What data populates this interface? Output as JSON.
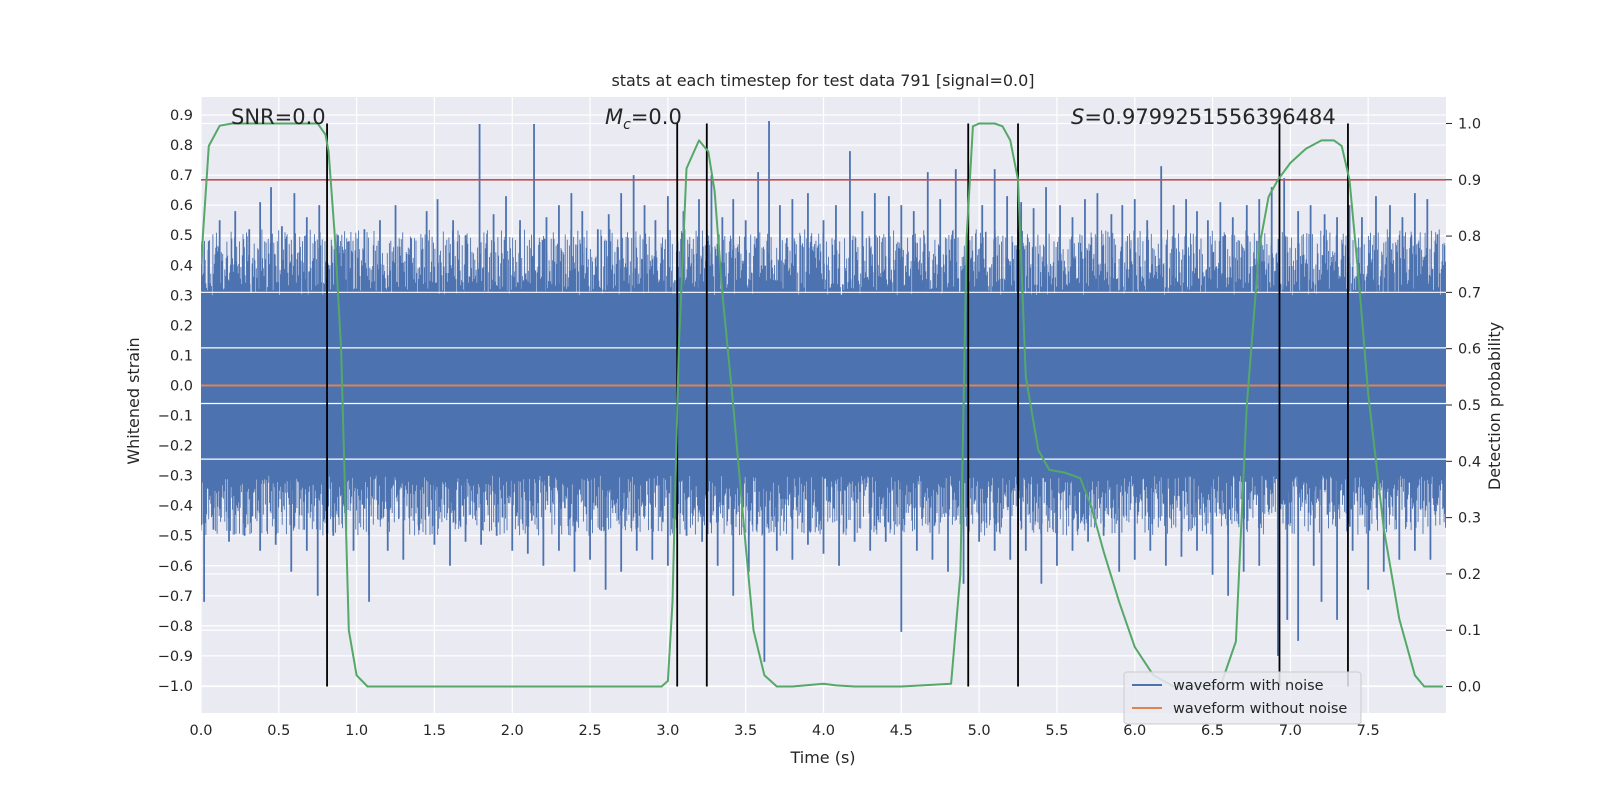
{
  "chart_data": {
    "type": "line",
    "title": "stats at each timestep for test data 791 [signal=0.0]",
    "xlabel": "Time (s)",
    "ylabel": "Whitened strain",
    "ylabel_right": "Detection probability",
    "xlim": [
      0.0,
      8.0
    ],
    "ylim": [
      -1.09,
      0.96
    ],
    "ylim_right": [
      -0.047,
      1.047
    ],
    "x_ticks": [
      "0.0",
      "0.5",
      "1.0",
      "1.5",
      "2.0",
      "2.5",
      "3.0",
      "3.5",
      "4.0",
      "4.5",
      "5.0",
      "5.5",
      "6.0",
      "6.5",
      "7.0",
      "7.5"
    ],
    "y_ticks": [
      "0.9",
      "0.8",
      "0.7",
      "0.6",
      "0.5",
      "0.4",
      "0.3",
      "0.2",
      "0.1",
      "0.0",
      "−0.1",
      "−0.2",
      "−0.3",
      "−0.4",
      "−0.5",
      "−0.6",
      "−0.7",
      "−0.8",
      "−0.9",
      "−1.0"
    ],
    "y_ticks_right": [
      "1.0",
      "0.9",
      "0.8",
      "0.7",
      "0.6",
      "0.5",
      "0.4",
      "0.3",
      "0.2",
      "0.1",
      "0.0"
    ],
    "grid": true,
    "legend_placement": "lower right",
    "annotations": {
      "snr": "SNR=0.0",
      "mc_symbol": "M",
      "mc_sub": "c",
      "mc_value": "=0.0",
      "s_symbol": "S",
      "s_value": "=0.9799251556396484"
    },
    "series": [
      {
        "name": "waveform with noise",
        "color": "#4c72b0",
        "description_band": [
          -0.3,
          0.3
        ],
        "upper_spikes": [
          [
            0.05,
            0.48
          ],
          [
            0.12,
            0.55
          ],
          [
            0.22,
            0.58
          ],
          [
            0.31,
            0.52
          ],
          [
            0.38,
            0.61
          ],
          [
            0.45,
            0.66
          ],
          [
            0.52,
            0.53
          ],
          [
            0.6,
            0.64
          ],
          [
            0.68,
            0.56
          ],
          [
            0.76,
            0.6
          ],
          [
            0.88,
            0.5
          ],
          [
            0.95,
            0.48
          ],
          [
            1.05,
            0.52
          ],
          [
            1.15,
            0.55
          ],
          [
            1.25,
            0.6
          ],
          [
            1.35,
            0.49
          ],
          [
            1.45,
            0.58
          ],
          [
            1.52,
            0.62
          ],
          [
            1.62,
            0.55
          ],
          [
            1.7,
            0.5
          ],
          [
            1.79,
            0.87
          ],
          [
            1.88,
            0.57
          ],
          [
            1.96,
            0.63
          ],
          [
            2.05,
            0.55
          ],
          [
            2.14,
            0.87
          ],
          [
            2.22,
            0.56
          ],
          [
            2.3,
            0.6
          ],
          [
            2.38,
            0.64
          ],
          [
            2.45,
            0.58
          ],
          [
            2.55,
            0.52
          ],
          [
            2.62,
            0.57
          ],
          [
            2.7,
            0.64
          ],
          [
            2.78,
            0.7
          ],
          [
            2.85,
            0.6
          ],
          [
            2.92,
            0.55
          ],
          [
            3.0,
            0.63
          ],
          [
            3.1,
            0.58
          ],
          [
            3.2,
            0.62
          ],
          [
            3.28,
            0.7
          ],
          [
            3.35,
            0.56
          ],
          [
            3.42,
            0.62
          ],
          [
            3.5,
            0.55
          ],
          [
            3.58,
            0.71
          ],
          [
            3.65,
            0.88
          ],
          [
            3.72,
            0.6
          ],
          [
            3.8,
            0.62
          ],
          [
            3.9,
            0.64
          ],
          [
            4.0,
            0.55
          ],
          [
            4.08,
            0.6
          ],
          [
            4.17,
            0.78
          ],
          [
            4.25,
            0.58
          ],
          [
            4.33,
            0.64
          ],
          [
            4.42,
            0.63
          ],
          [
            4.5,
            0.6
          ],
          [
            4.58,
            0.58
          ],
          [
            4.67,
            0.71
          ],
          [
            4.75,
            0.62
          ],
          [
            4.85,
            0.72
          ],
          [
            4.93,
            0.58
          ],
          [
            5.02,
            0.6
          ],
          [
            5.1,
            0.72
          ],
          [
            5.18,
            0.63
          ],
          [
            5.27,
            0.61
          ],
          [
            5.35,
            0.59
          ],
          [
            5.43,
            0.66
          ],
          [
            5.52,
            0.6
          ],
          [
            5.6,
            0.56
          ],
          [
            5.68,
            0.62
          ],
          [
            5.76,
            0.64
          ],
          [
            5.85,
            0.57
          ],
          [
            5.92,
            0.6
          ],
          [
            6.0,
            0.62
          ],
          [
            6.08,
            0.55
          ],
          [
            6.17,
            0.73
          ],
          [
            6.25,
            0.6
          ],
          [
            6.33,
            0.62
          ],
          [
            6.4,
            0.58
          ],
          [
            6.47,
            0.55
          ],
          [
            6.55,
            0.61
          ],
          [
            6.63,
            0.56
          ],
          [
            6.72,
            0.6
          ],
          [
            6.8,
            0.62
          ],
          [
            6.88,
            0.66
          ],
          [
            6.96,
            0.69
          ],
          [
            7.05,
            0.58
          ],
          [
            7.13,
            0.6
          ],
          [
            7.22,
            0.57
          ],
          [
            7.3,
            0.56
          ],
          [
            7.38,
            0.6
          ],
          [
            7.46,
            0.56
          ],
          [
            7.55,
            0.63
          ],
          [
            7.64,
            0.6
          ],
          [
            7.72,
            0.56
          ],
          [
            7.8,
            0.64
          ],
          [
            7.88,
            0.62
          ]
        ],
        "lower_spikes": [
          [
            0.02,
            -0.72
          ],
          [
            0.08,
            -0.48
          ],
          [
            0.18,
            -0.52
          ],
          [
            0.28,
            -0.5
          ],
          [
            0.38,
            -0.55
          ],
          [
            0.48,
            -0.53
          ],
          [
            0.58,
            -0.62
          ],
          [
            0.68,
            -0.55
          ],
          [
            0.75,
            -0.7
          ],
          [
            0.85,
            -0.5
          ],
          [
            0.98,
            -0.55
          ],
          [
            1.08,
            -0.72
          ],
          [
            1.2,
            -0.55
          ],
          [
            1.3,
            -0.58
          ],
          [
            1.4,
            -0.48
          ],
          [
            1.5,
            -0.53
          ],
          [
            1.6,
            -0.6
          ],
          [
            1.7,
            -0.52
          ],
          [
            1.8,
            -0.53
          ],
          [
            1.9,
            -0.5
          ],
          [
            2.0,
            -0.55
          ],
          [
            2.1,
            -0.56
          ],
          [
            2.2,
            -0.6
          ],
          [
            2.3,
            -0.55
          ],
          [
            2.4,
            -0.62
          ],
          [
            2.5,
            -0.58
          ],
          [
            2.6,
            -0.68
          ],
          [
            2.7,
            -0.62
          ],
          [
            2.8,
            -0.55
          ],
          [
            2.9,
            -0.58
          ],
          [
            3.0,
            -0.6
          ],
          [
            3.12,
            -0.5
          ],
          [
            3.22,
            -0.52
          ],
          [
            3.32,
            -0.6
          ],
          [
            3.42,
            -0.7
          ],
          [
            3.52,
            -0.62
          ],
          [
            3.62,
            -0.92
          ],
          [
            3.7,
            -0.55
          ],
          [
            3.8,
            -0.58
          ],
          [
            3.9,
            -0.53
          ],
          [
            4.0,
            -0.56
          ],
          [
            4.1,
            -0.6
          ],
          [
            4.2,
            -0.52
          ],
          [
            4.3,
            -0.55
          ],
          [
            4.4,
            -0.52
          ],
          [
            4.5,
            -0.82
          ],
          [
            4.6,
            -0.55
          ],
          [
            4.7,
            -0.58
          ],
          [
            4.8,
            -0.62
          ],
          [
            4.9,
            -0.66
          ],
          [
            5.0,
            -0.52
          ],
          [
            5.1,
            -0.55
          ],
          [
            5.2,
            -0.58
          ],
          [
            5.3,
            -0.55
          ],
          [
            5.4,
            -0.66
          ],
          [
            5.5,
            -0.6
          ],
          [
            5.6,
            -0.55
          ],
          [
            5.7,
            -0.52
          ],
          [
            5.8,
            -0.5
          ],
          [
            5.9,
            -0.62
          ],
          [
            6.0,
            -0.58
          ],
          [
            6.1,
            -0.55
          ],
          [
            6.2,
            -0.6
          ],
          [
            6.3,
            -0.57
          ],
          [
            6.4,
            -0.55
          ],
          [
            6.5,
            -0.63
          ],
          [
            6.6,
            -0.7
          ],
          [
            6.7,
            -0.62
          ],
          [
            6.8,
            -0.6
          ],
          [
            6.92,
            -0.9
          ],
          [
            6.98,
            -0.78
          ],
          [
            7.05,
            -0.85
          ],
          [
            7.15,
            -0.6
          ],
          [
            7.2,
            -0.72
          ],
          [
            7.3,
            -0.78
          ],
          [
            7.4,
            -0.55
          ],
          [
            7.5,
            -0.68
          ],
          [
            7.6,
            -0.62
          ],
          [
            7.7,
            -0.58
          ],
          [
            7.8,
            -0.55
          ],
          [
            7.9,
            -0.58
          ]
        ]
      },
      {
        "name": "waveform without noise",
        "color": "#dd8452",
        "x": [
          0.0,
          8.0
        ],
        "y": [
          0.0,
          0.0
        ]
      },
      {
        "name": "detection probability",
        "axis": "right",
        "color": "#55a868",
        "x": [
          0.0,
          0.05,
          0.12,
          0.2,
          0.3,
          0.5,
          0.75,
          0.8,
          0.82,
          0.86,
          0.9,
          0.95,
          1.0,
          1.07,
          1.2,
          1.6,
          2.0,
          2.5,
          2.8,
          2.96,
          3.0,
          3.03,
          3.07,
          3.12,
          3.2,
          3.26,
          3.3,
          3.35,
          3.42,
          3.5,
          3.55,
          3.62,
          3.7,
          3.8,
          4.0,
          4.08,
          4.2,
          4.5,
          4.82,
          4.88,
          4.92,
          4.96,
          5.0,
          5.05,
          5.1,
          5.15,
          5.2,
          5.25,
          5.3,
          5.38,
          5.45,
          5.55,
          5.65,
          5.72,
          5.8,
          5.9,
          6.0,
          6.12,
          6.25,
          6.4,
          6.55,
          6.65,
          6.72,
          6.8,
          6.86,
          6.92,
          7.0,
          7.1,
          7.2,
          7.28,
          7.33,
          7.38,
          7.44,
          7.5,
          7.6,
          7.7,
          7.8,
          7.86,
          7.92,
          7.98
        ],
        "y": [
          0.75,
          0.96,
          0.996,
          1.0,
          1.0,
          1.0,
          1.0,
          0.98,
          0.95,
          0.8,
          0.6,
          0.1,
          0.02,
          0.0,
          0.0,
          0.0,
          0.0,
          0.0,
          0.0,
          0.0,
          0.01,
          0.15,
          0.6,
          0.92,
          0.97,
          0.95,
          0.88,
          0.7,
          0.5,
          0.25,
          0.1,
          0.02,
          0.0,
          0.0,
          0.005,
          0.002,
          0.0,
          0.0,
          0.005,
          0.2,
          0.8,
          0.995,
          1.0,
          1.0,
          1.0,
          0.995,
          0.97,
          0.9,
          0.55,
          0.42,
          0.385,
          0.38,
          0.37,
          0.32,
          0.24,
          0.15,
          0.07,
          0.02,
          0.0,
          0.0,
          0.0,
          0.08,
          0.5,
          0.78,
          0.87,
          0.9,
          0.93,
          0.955,
          0.97,
          0.97,
          0.96,
          0.9,
          0.72,
          0.52,
          0.28,
          0.12,
          0.02,
          0.0,
          0.0,
          0.0
        ]
      }
    ],
    "threshold": {
      "axis": "right",
      "value": 0.9,
      "color": "#c44e52"
    },
    "vertical_markers": {
      "color": "#000000",
      "x": [
        0.81,
        3.06,
        3.25,
        4.93,
        5.25,
        6.93,
        7.37
      ]
    }
  }
}
